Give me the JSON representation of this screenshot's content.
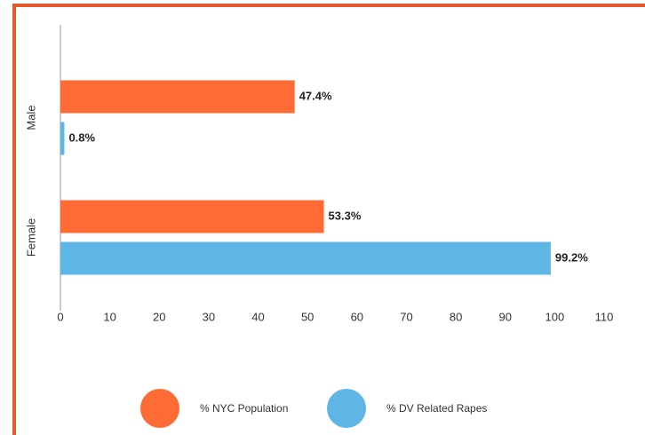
{
  "chart_data": {
    "type": "barh",
    "categories": [
      "Male",
      "Female"
    ],
    "series": [
      {
        "name": "% NYC Population",
        "color": "#ff6b35",
        "values": [
          47.4,
          53.3
        ],
        "value_labels": [
          "47.4%",
          "53.3%"
        ]
      },
      {
        "name": "% DV Related Rapes",
        "color": "#5db6e4",
        "values": [
          0.8,
          99.2
        ],
        "value_labels": [
          "0.8%",
          "99.2%"
        ]
      }
    ],
    "xlim": [
      0,
      110
    ],
    "xticks": [
      0,
      10,
      20,
      30,
      40,
      50,
      60,
      70,
      80,
      90,
      100,
      110
    ],
    "legend": "bottom"
  }
}
